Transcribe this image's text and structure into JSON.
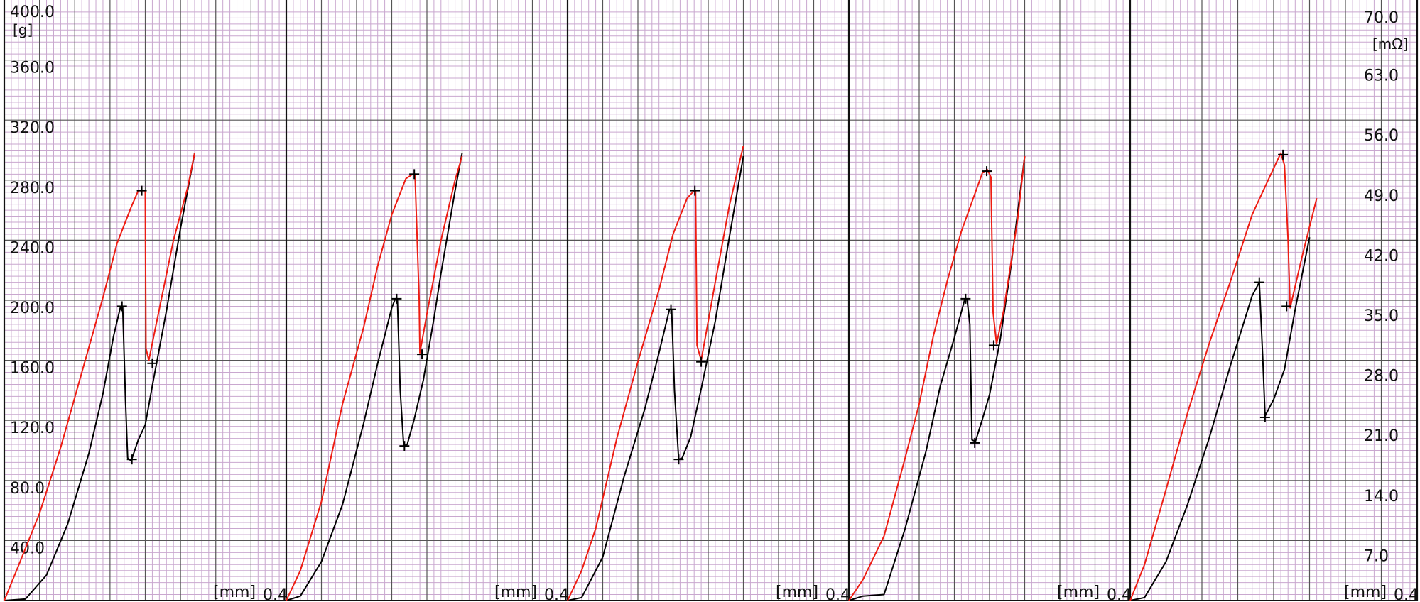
{
  "chart_data": {
    "type": "line",
    "title": "",
    "panel_count": 5,
    "left_axis": {
      "unit": "[g]",
      "range": [
        0,
        400
      ],
      "tick_labels": [
        "400.0",
        "360.0",
        "320.0",
        "280.0",
        "240.0",
        "200.0",
        "160.0",
        "120.0",
        "80.0",
        "40.0"
      ]
    },
    "right_axis": {
      "unit": "[mΩ]",
      "range": [
        0,
        70
      ],
      "tick_labels": [
        "70.0",
        "63.0",
        "56.0",
        "49.0",
        "42.0",
        "35.0",
        "28.0",
        "21.0",
        "14.0",
        "7.0"
      ]
    },
    "x_axis": {
      "unit": "[mm]",
      "max_label": "0.4",
      "range": [
        0,
        0.4
      ]
    },
    "grid": {
      "major": true,
      "minor": true
    },
    "colors": {
      "background": "#ffffff",
      "grid_minor": "#c9a7cf",
      "grid_major": "#555555",
      "panel_border": "#111111",
      "series_red": "#ee1c12",
      "series_black": "#000000",
      "marker": "#000000"
    },
    "panels": [
      {
        "red": [
          [
            0,
            0
          ],
          [
            0.02,
            23
          ],
          [
            0.05,
            58
          ],
          [
            0.08,
            102
          ],
          [
            0.11,
            152
          ],
          [
            0.14,
            202
          ],
          [
            0.16,
            238
          ],
          [
            0.18,
            262
          ],
          [
            0.19,
            273
          ],
          [
            0.2,
            273
          ],
          [
            0.201,
            168
          ],
          [
            0.205,
            160
          ],
          [
            0.215,
            183
          ],
          [
            0.24,
            240
          ],
          [
            0.26,
            275
          ],
          [
            0.27,
            298
          ]
        ],
        "red_markers": [
          [
            0.195,
            273
          ],
          [
            0.21,
            158
          ]
        ],
        "black": [
          [
            0,
            0
          ],
          [
            0.03,
            1
          ],
          [
            0.06,
            17
          ],
          [
            0.09,
            51
          ],
          [
            0.12,
            98
          ],
          [
            0.14,
            138
          ],
          [
            0.155,
            176
          ],
          [
            0.165,
            196
          ],
          [
            0.168,
            196
          ],
          [
            0.172,
            133
          ],
          [
            0.175,
            95
          ],
          [
            0.18,
            93
          ],
          [
            0.19,
            107
          ],
          [
            0.2,
            117
          ],
          [
            0.21,
            143
          ],
          [
            0.23,
            193
          ],
          [
            0.25,
            248
          ],
          [
            0.27,
            298
          ]
        ],
        "black_markers": [
          [
            0.167,
            196
          ],
          [
            0.181,
            94
          ]
        ]
      },
      {
        "red": [
          [
            0,
            0
          ],
          [
            0.02,
            20
          ],
          [
            0.05,
            66
          ],
          [
            0.08,
            131
          ],
          [
            0.11,
            182
          ],
          [
            0.13,
            223
          ],
          [
            0.15,
            257
          ],
          [
            0.17,
            281
          ],
          [
            0.18,
            284
          ],
          [
            0.183,
            284
          ],
          [
            0.189,
            200
          ],
          [
            0.19,
            165
          ],
          [
            0.2,
            191
          ],
          [
            0.22,
            240
          ],
          [
            0.24,
            280
          ],
          [
            0.25,
            296
          ]
        ],
        "red_markers": [
          [
            0.182,
            284
          ],
          [
            0.193,
            164
          ]
        ],
        "black": [
          [
            0,
            0
          ],
          [
            0.02,
            3
          ],
          [
            0.05,
            26
          ],
          [
            0.08,
            64
          ],
          [
            0.11,
            118
          ],
          [
            0.13,
            158
          ],
          [
            0.15,
            195
          ],
          [
            0.155,
            201
          ],
          [
            0.158,
            201
          ],
          [
            0.162,
            140
          ],
          [
            0.167,
            103
          ],
          [
            0.172,
            104
          ],
          [
            0.182,
            121
          ],
          [
            0.195,
            147
          ],
          [
            0.21,
            188
          ],
          [
            0.22,
            218
          ],
          [
            0.24,
            273
          ],
          [
            0.25,
            298
          ]
        ],
        "black_markers": [
          [
            0.157,
            201
          ],
          [
            0.168,
            103
          ]
        ]
      },
      {
        "red": [
          [
            0,
            0
          ],
          [
            0.02,
            20
          ],
          [
            0.04,
            48
          ],
          [
            0.07,
            108
          ],
          [
            0.1,
            159
          ],
          [
            0.13,
            207
          ],
          [
            0.15,
            244
          ],
          [
            0.17,
            268
          ],
          [
            0.18,
            273
          ],
          [
            0.182,
            273
          ],
          [
            0.184,
            170
          ],
          [
            0.19,
            160
          ],
          [
            0.21,
            212
          ],
          [
            0.23,
            263
          ],
          [
            0.25,
            303
          ]
        ],
        "red_markers": [
          [
            0.181,
            273
          ],
          [
            0.19,
            159
          ]
        ],
        "black": [
          [
            0,
            0
          ],
          [
            0.02,
            2
          ],
          [
            0.05,
            29
          ],
          [
            0.08,
            82
          ],
          [
            0.11,
            128
          ],
          [
            0.13,
            165
          ],
          [
            0.145,
            194
          ],
          [
            0.148,
            194
          ],
          [
            0.152,
            140
          ],
          [
            0.158,
            94
          ],
          [
            0.163,
            95
          ],
          [
            0.175,
            109
          ],
          [
            0.19,
            141
          ],
          [
            0.21,
            186
          ],
          [
            0.23,
            242
          ],
          [
            0.25,
            296
          ]
        ],
        "black_markers": [
          [
            0.147,
            194
          ],
          [
            0.158,
            94
          ]
        ]
      },
      {
        "red": [
          [
            0,
            0
          ],
          [
            0.02,
            14
          ],
          [
            0.05,
            43
          ],
          [
            0.08,
            95
          ],
          [
            0.1,
            131
          ],
          [
            0.12,
            176
          ],
          [
            0.14,
            213
          ],
          [
            0.16,
            246
          ],
          [
            0.18,
            272
          ],
          [
            0.19,
            285
          ],
          [
            0.197,
            287
          ],
          [
            0.202,
            282
          ],
          [
            0.205,
            192
          ],
          [
            0.21,
            171
          ],
          [
            0.22,
            193
          ],
          [
            0.24,
            254
          ],
          [
            0.25,
            296
          ]
        ],
        "red_markers": [
          [
            0.196,
            286
          ],
          [
            0.206,
            170
          ]
        ],
        "black": [
          [
            0,
            0
          ],
          [
            0.02,
            3
          ],
          [
            0.05,
            4
          ],
          [
            0.08,
            48
          ],
          [
            0.11,
            100
          ],
          [
            0.13,
            143
          ],
          [
            0.15,
            175
          ],
          [
            0.165,
            201
          ],
          [
            0.168,
            201
          ],
          [
            0.172,
            184
          ],
          [
            0.175,
            107
          ],
          [
            0.18,
            106
          ],
          [
            0.19,
            121
          ],
          [
            0.2,
            137
          ],
          [
            0.215,
            173
          ],
          [
            0.23,
            221
          ],
          [
            0.25,
            296
          ]
        ],
        "black_markers": [
          [
            0.166,
            201
          ],
          [
            0.179,
            105
          ]
        ]
      },
      {
        "red": [
          [
            0,
            0
          ],
          [
            0.02,
            24
          ],
          [
            0.05,
            74
          ],
          [
            0.08,
            125
          ],
          [
            0.11,
            171
          ],
          [
            0.14,
            213
          ],
          [
            0.17,
            257
          ],
          [
            0.2,
            288
          ],
          [
            0.21,
            298
          ],
          [
            0.215,
            290
          ],
          [
            0.22,
            241
          ],
          [
            0.223,
            195
          ],
          [
            0.24,
            230
          ],
          [
            0.26,
            268
          ]
        ],
        "red_markers": [
          [
            0.213,
            297
          ],
          [
            0.218,
            196
          ]
        ],
        "black": [
          [
            0,
            0
          ],
          [
            0.02,
            2
          ],
          [
            0.05,
            26
          ],
          [
            0.08,
            64
          ],
          [
            0.11,
            108
          ],
          [
            0.14,
            157
          ],
          [
            0.17,
            203
          ],
          [
            0.18,
            212
          ],
          [
            0.185,
            160
          ],
          [
            0.188,
            123
          ],
          [
            0.2,
            134
          ],
          [
            0.215,
            154
          ],
          [
            0.23,
            194
          ],
          [
            0.25,
            242
          ]
        ],
        "black_markers": [
          [
            0.18,
            212
          ],
          [
            0.188,
            122
          ]
        ]
      }
    ]
  }
}
